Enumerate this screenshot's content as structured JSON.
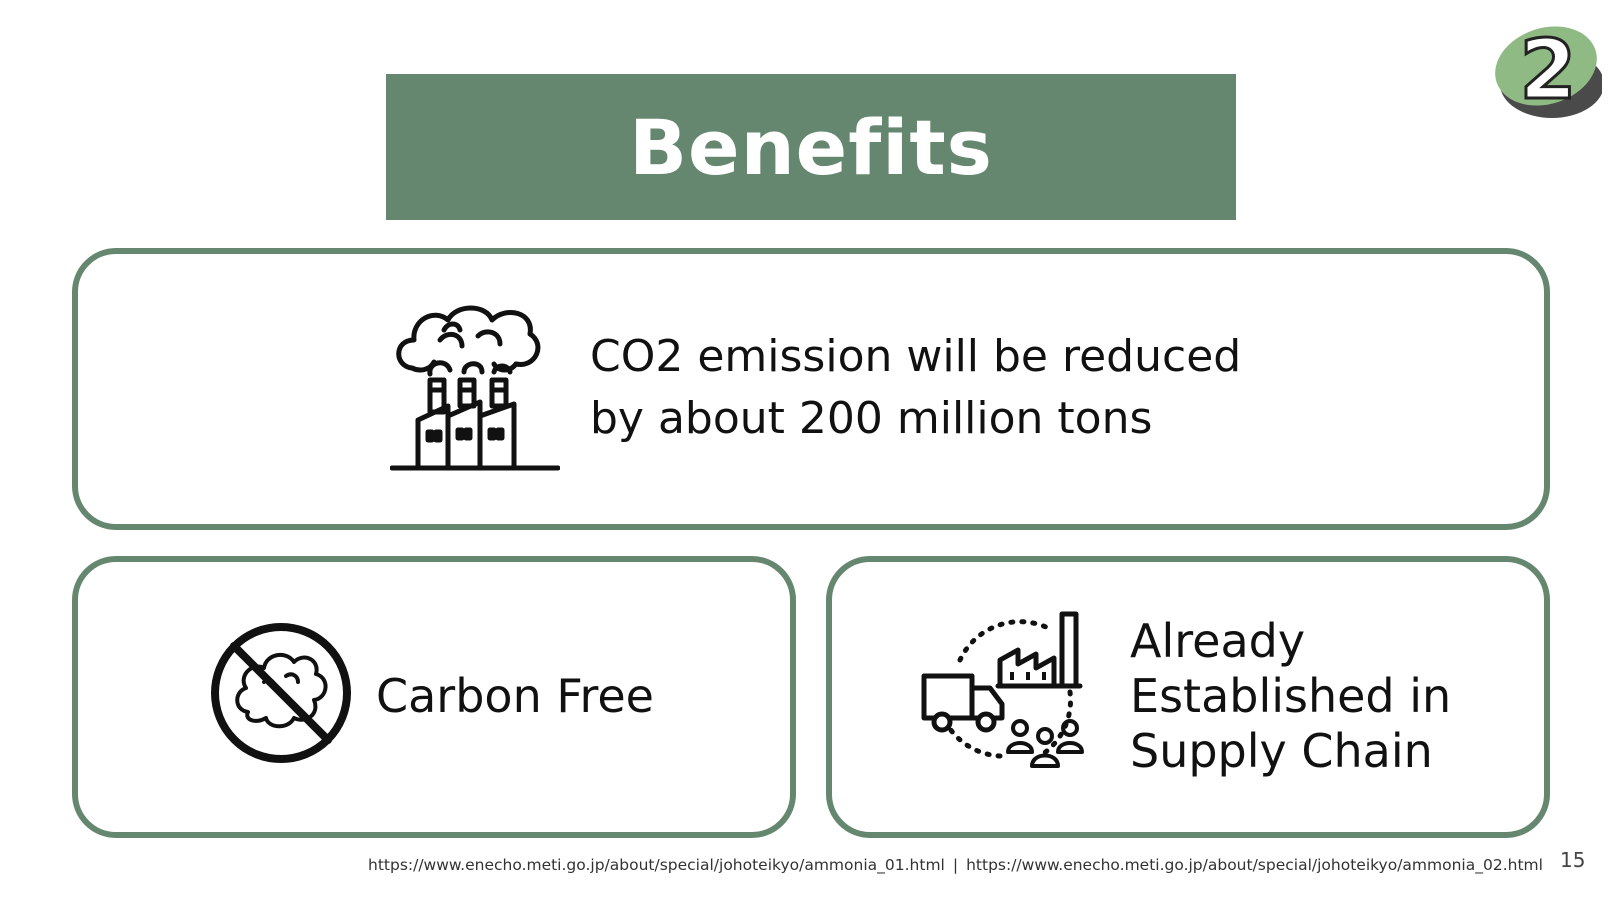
{
  "slide": {
    "title": "Benefits",
    "badge_number": "2",
    "colors": {
      "accent": "#66876f",
      "badge_light": "#8fba83",
      "badge_dark": "#4a4a4a"
    }
  },
  "cards": {
    "co2": {
      "icon": "factory-smoke-icon",
      "line1": "CO2 emission will be reduced",
      "line2": "by about 200 million tons"
    },
    "carbon_free": {
      "icon": "no-smoke-icon",
      "label": "Carbon Free"
    },
    "supply_chain": {
      "icon": "supply-chain-icon",
      "line1": "Already",
      "line2": "Established in",
      "line3": "Supply Chain"
    }
  },
  "footer": {
    "link1": "https://www.enecho.meti.go.jp/about/special/johoteikyo/ammonia_01.html",
    "separator": "|",
    "link2": "https://www.enecho.meti.go.jp/about/special/johoteikyo/ammonia_02.html",
    "page_number": "15"
  }
}
